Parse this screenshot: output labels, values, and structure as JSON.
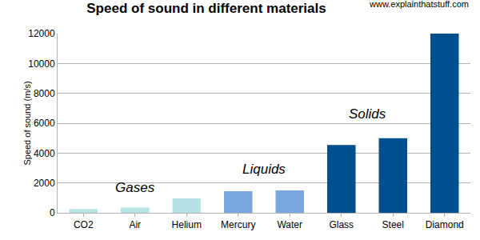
{
  "chart_data": {
    "type": "bar",
    "title": "Speed of sound in different materials",
    "y_label": "Speed of sound (m/s)",
    "categories": [
      "CO2",
      "Air",
      "Helium",
      "Mercury",
      "Water",
      "Glass",
      "Steel",
      "Diamond"
    ],
    "values": [
      260,
      343,
      965,
      1450,
      1500,
      4540,
      5000,
      12000
    ],
    "colors": [
      "#b7e3e4",
      "#b7e3e4",
      "#b7e3e4",
      "#7ba7de",
      "#7ba7de",
      "#004f8f",
      "#004f8f",
      "#004f8f"
    ],
    "ylim": [
      0,
      12000
    ],
    "yticks": [
      0,
      2000,
      4000,
      6000,
      8000,
      10000,
      12000
    ],
    "grid": true,
    "annotations": [
      {
        "text": "Gases",
        "category": "Air"
      },
      {
        "text": "Liquids",
        "category": "Water"
      },
      {
        "text": "Solids",
        "category": "Steel"
      },
      {
        "text": "www.explainthatstuff.com"
      }
    ]
  }
}
